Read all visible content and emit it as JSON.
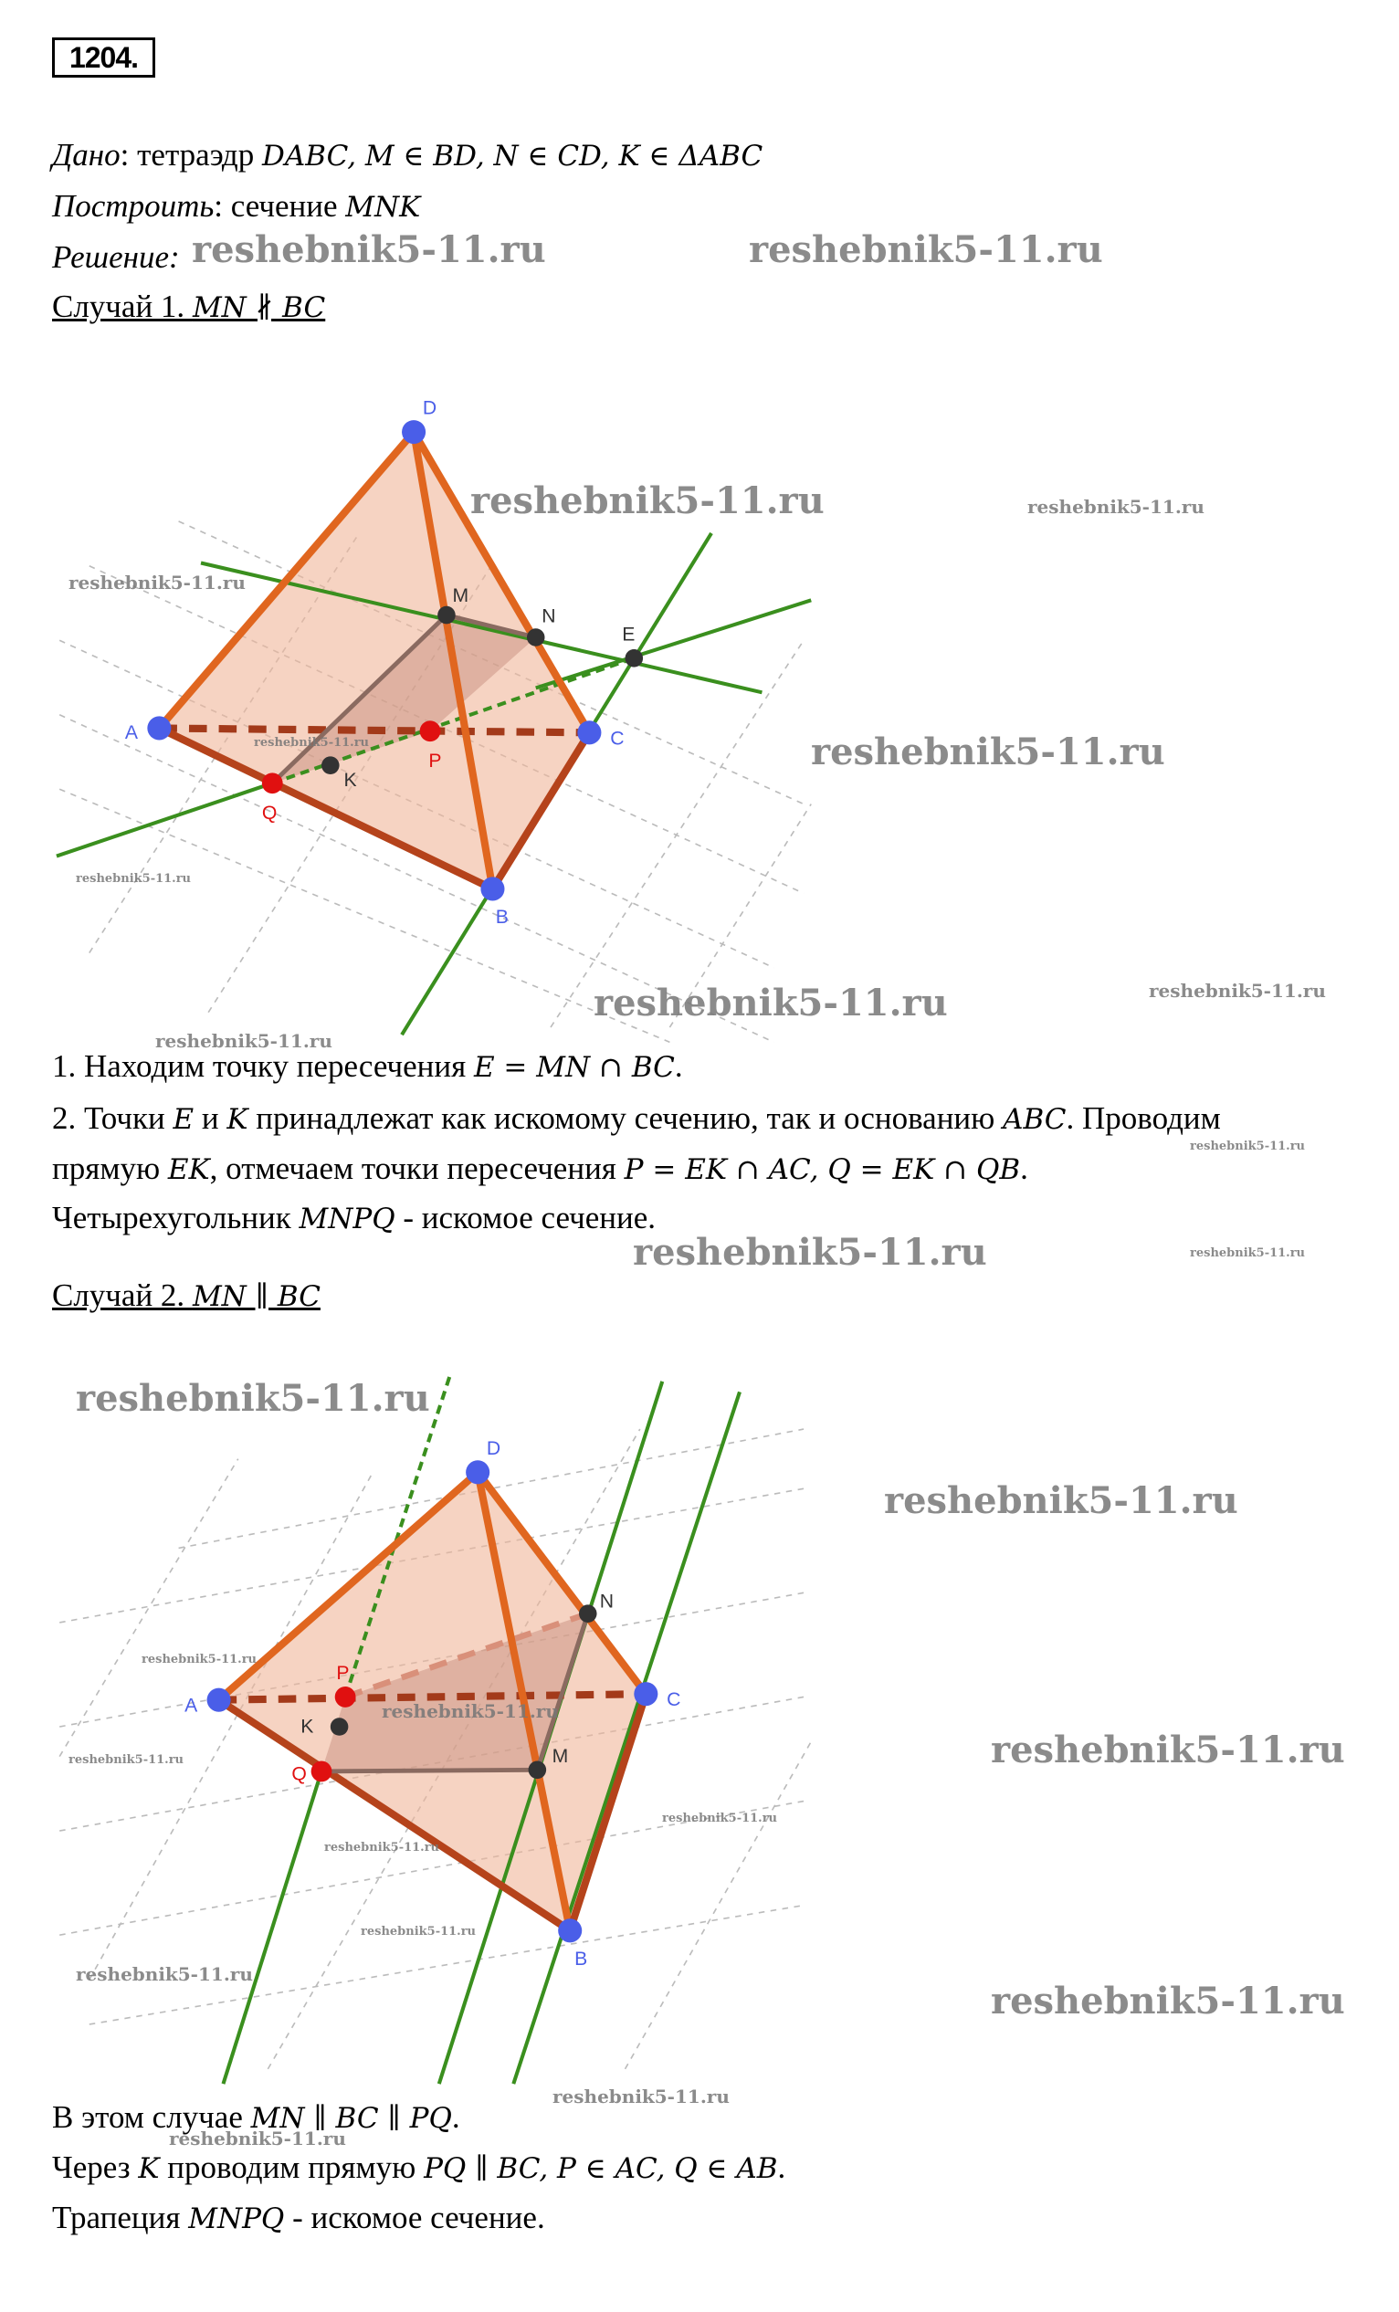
{
  "problem_number": "1204.",
  "given": {
    "label": "Дано",
    "text": ": тетраэдр ",
    "math": "DABC, M ∈ BD, N ∈ CD, K ∈ ΔABC"
  },
  "construct": {
    "label": "Построить",
    "text": ": сечение ",
    "math": "MNK"
  },
  "solution": {
    "label": "Решение",
    "text": ":"
  },
  "case1": {
    "title": "Случай 1. ",
    "math": "MN ∦ BC",
    "steps": [
      {
        "text": "1. Находим точку пересечения ",
        "math": "E = MN ∩ BC",
        "end": "."
      },
      {
        "text": "2. Точки ",
        "m1": "E",
        "t2": " и ",
        "m2": "K",
        "t3": " принадлежат как искомому сечению, так и основанию ",
        "m3": "ABC",
        "t4": ". Проводим"
      },
      {
        "text": "прямую ",
        "m1": "EK",
        "t2": ", отмечаем точки пересечения ",
        "m2": "P = EK ∩ AC, Q = EK ∩ QB",
        "end": "."
      },
      {
        "text": "Четырехугольник ",
        "math": "MNPQ",
        "end": " - искомое сечение."
      }
    ],
    "figure_labels": {
      "D": "D",
      "A": "A",
      "B": "B",
      "C": "C",
      "M": "M",
      "N": "N",
      "E": "E",
      "P": "P",
      "Q": "Q",
      "K": "K"
    }
  },
  "case2": {
    "title": "Случай 2. ",
    "math": "MN ∥ BC",
    "steps": [
      {
        "text": "В этом случае ",
        "math": "MN ∥ BC ∥ PQ",
        "end": "."
      },
      {
        "text": "Через ",
        "m1": "K",
        "t2": " проводим прямую ",
        "m2": "PQ ∥ BC, P ∈ AC, Q ∈ AB",
        "end": "."
      },
      {
        "text": "Трапеция ",
        "math": "MNPQ",
        "end": " - искомое сечение."
      }
    ],
    "figure_labels": {
      "D": "D",
      "A": "A",
      "B": "B",
      "C": "C",
      "M": "M",
      "N": "N",
      "P": "P",
      "Q": "Q",
      "K": "K"
    }
  },
  "watermark": "reshebnik5-11.ru",
  "colors": {
    "edge": "#e0661f",
    "face": "#f0b59a",
    "line": "#3a8f1e",
    "point_blue": "#4a5ee8",
    "point_red": "#e01010",
    "point_dark": "#333333",
    "dashed": "#a33a1a"
  }
}
